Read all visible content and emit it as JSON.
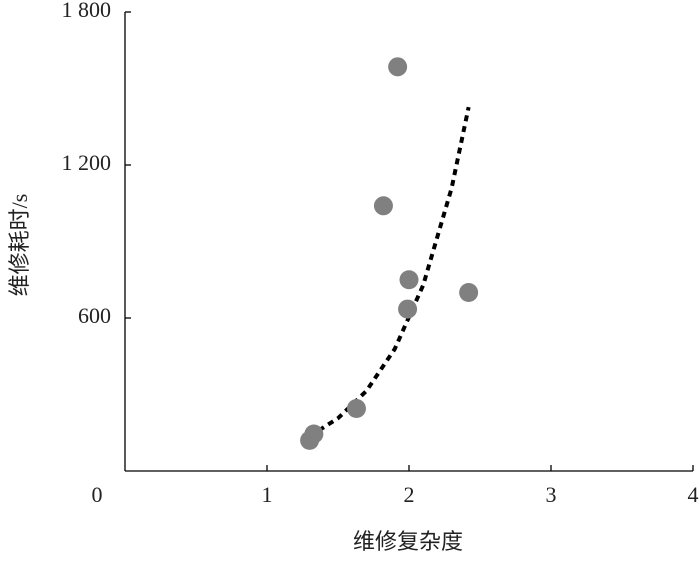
{
  "chart_data": {
    "type": "scatter",
    "x_label": "维修复杂度",
    "y_label": "维修耗时/s",
    "x": [
      1.92,
      1.82,
      2.0,
      1.99,
      2.42,
      1.63,
      1.33,
      1.3
    ],
    "values": [
      1585,
      1040,
      750,
      635,
      700,
      245,
      145,
      120
    ],
    "color": "#808080",
    "trendline": {
      "x": [
        1.3,
        1.5,
        1.7,
        1.9,
        2.1,
        2.3,
        2.42
      ],
      "values": [
        136,
        207,
        314,
        479,
        729,
        1109,
        1427
      ],
      "color": "#000000",
      "style": "dotted"
    },
    "xlim": [
      0,
      4
    ],
    "xticks": [
      0,
      1,
      2,
      3,
      4
    ],
    "ylim": [
      0,
      1800
    ],
    "yticks": [
      {
        "value": 600,
        "label": "600"
      },
      {
        "value": 1200,
        "label": "1 200"
      },
      {
        "value": 1800,
        "label": "1 800"
      }
    ]
  }
}
